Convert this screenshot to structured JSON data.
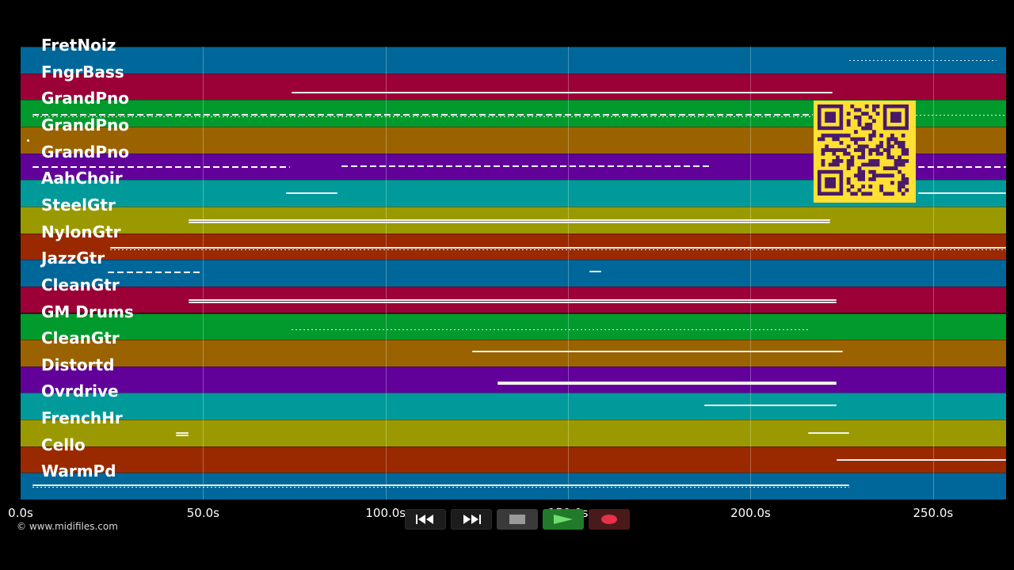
{
  "lanes": [
    {
      "label": "FretNoiz",
      "color": "#00679a"
    },
    {
      "label": "FngrBass",
      "color": "#9b0036"
    },
    {
      "label": "GrandPno",
      "color": "#009a2d"
    },
    {
      "label": "GrandPno",
      "color": "#9a6300"
    },
    {
      "label": "GrandPno",
      "color": "#62009a"
    },
    {
      "label": "AahChoir",
      "color": "#009a9a"
    },
    {
      "label": "SteelGtr",
      "color": "#9a9a00"
    },
    {
      "label": "NylonGtr",
      "color": "#9a2900"
    },
    {
      "label": "JazzGtr",
      "color": "#00679a"
    },
    {
      "label": "CleanGtr",
      "color": "#9b0036"
    },
    {
      "label": "GM Drums",
      "color": "#009a2d"
    },
    {
      "label": "CleanGtr",
      "color": "#9a6300"
    },
    {
      "label": "Distortd",
      "color": "#62009a"
    },
    {
      "label": "Ovrdrive",
      "color": "#009a9a"
    },
    {
      "label": "FrenchHr",
      "color": "#9a9a00"
    },
    {
      "label": "Cello",
      "color": "#9a2900"
    },
    {
      "label": "WarmPd",
      "color": "#00679a"
    }
  ],
  "time_axis": {
    "ticks": [
      "0.0s",
      "50.0s",
      "100.0s",
      "150.0s",
      "200.0s",
      "250.0s"
    ],
    "max_seconds": 270
  },
  "copyright": "© www.midifiles.com",
  "transport": {
    "rewind": "rewind-icon",
    "fast_forward": "fast-forward-icon",
    "stop": "stop-icon",
    "play": "play-icon",
    "record": "record-icon"
  },
  "colors": {
    "qr_background": "#ffe033",
    "qr_modules": "#4a1a6a"
  }
}
